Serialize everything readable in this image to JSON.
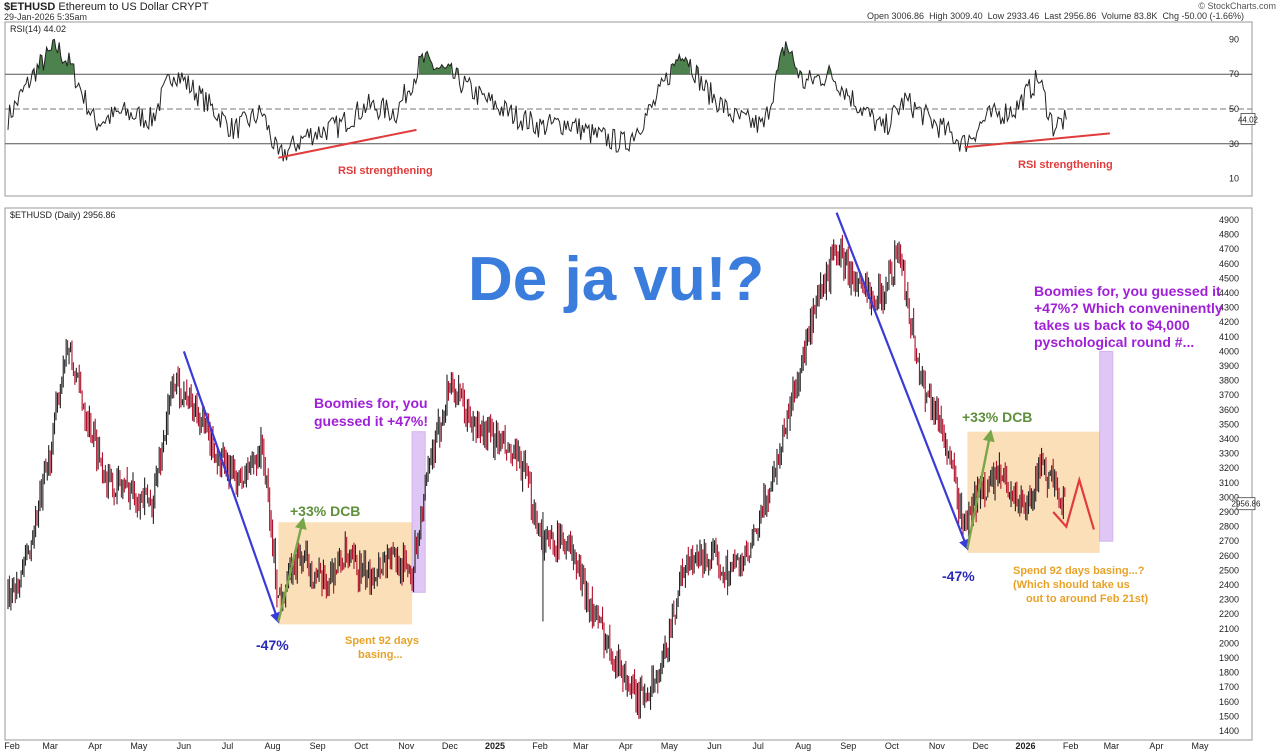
{
  "header": {
    "symbol": "$ETHUSD",
    "name": "Ethereum to US Dollar",
    "exchange": "CRYPT",
    "datetime": "29-Jan-2026 5:35am",
    "brand": "© StockCharts.com",
    "open_label": "Open",
    "open": "3006.86",
    "high_label": "High",
    "high": "3009.40",
    "low_label": "Low",
    "low": "2933.46",
    "last_label": "Last",
    "last": "2956.86",
    "volume_label": "Volume",
    "volume": "83.8K",
    "chg_label": "Chg",
    "chg": "-50.00 (-1.66%)"
  },
  "colors": {
    "price_down": "#b0102a",
    "price_up": "#222222",
    "rsi_line": "#222222",
    "rsi_fill": "#2e6b2e",
    "arrow_blue": "#3a3ad6",
    "arrow_green": "#7aa64a",
    "red_annot": "#e03c3c",
    "purple": "#a020d8",
    "orange_box": "#f6c98a",
    "lavender_bar": "#cfa8f0",
    "deja_vu": "#3b7ddd"
  },
  "chart_data": [
    {
      "type": "line",
      "title": "RSI(14) 44.02",
      "ylim": [
        0,
        100
      ],
      "y_ticks": [
        "90",
        "70",
        "50",
        "30",
        "10"
      ],
      "reference_lines": [
        70,
        50,
        30
      ],
      "last_value": "44.02",
      "x": [
        "2024-02-01",
        "2024-02-20",
        "2024-03-05",
        "2024-03-15",
        "2024-04-01",
        "2024-04-20",
        "2024-05-10",
        "2024-05-25",
        "2024-06-15",
        "2024-07-05",
        "2024-07-25",
        "2024-08-05",
        "2024-08-25",
        "2024-09-15",
        "2024-10-05",
        "2024-10-25",
        "2024-11-12",
        "2024-12-01",
        "2024-12-20",
        "2025-01-10",
        "2025-02-01",
        "2025-02-20",
        "2025-03-10",
        "2025-04-01",
        "2025-04-20",
        "2025-05-10",
        "2025-05-25",
        "2025-06-15",
        "2025-07-05",
        "2025-07-20",
        "2025-08-01",
        "2025-08-20",
        "2025-09-05",
        "2025-09-25",
        "2025-10-10",
        "2025-10-30",
        "2025-11-20",
        "2025-12-05",
        "2025-12-25",
        "2026-01-10",
        "2026-01-20",
        "2026-01-29"
      ],
      "values": [
        45,
        72,
        86,
        75,
        42,
        48,
        44,
        72,
        55,
        38,
        48,
        22,
        35,
        40,
        52,
        48,
        78,
        70,
        58,
        48,
        40,
        42,
        35,
        30,
        52,
        85,
        62,
        45,
        40,
        88,
        65,
        70,
        55,
        38,
        55,
        42,
        30,
        45,
        50,
        68,
        40,
        44
      ],
      "annotations": [
        {
          "text": "RSI strengthening",
          "from": {
            "x": "2024-08-05",
            "y": 22
          },
          "to": {
            "x": "2024-11-08",
            "y": 38
          }
        },
        {
          "text": "RSI strengthening",
          "from": {
            "x": "2025-11-20",
            "y": 28
          },
          "to": {
            "x": "2026-02-28",
            "y": 36
          }
        }
      ]
    },
    {
      "type": "line",
      "title": "$ETHUSD (Daily) 2956.86",
      "ylim": [
        1350,
        4950
      ],
      "y_ticks": [
        "4900",
        "4800",
        "4700",
        "4600",
        "4500",
        "4400",
        "4300",
        "4200",
        "4100",
        "4000",
        "3900",
        "3800",
        "3700",
        "3600",
        "3500",
        "3400",
        "3300",
        "3200",
        "3100",
        "3000",
        "2900",
        "2800",
        "2700",
        "2600",
        "2500",
        "2400",
        "2300",
        "2200",
        "2100",
        "2000",
        "1900",
        "1800",
        "1700",
        "1600",
        "1500",
        "1400"
      ],
      "last_value": "2956.86",
      "x_ticks": [
        "Feb",
        "Mar",
        "Apr",
        "May",
        "Jun",
        "Jul",
        "Aug",
        "Sep",
        "Oct",
        "Nov",
        "Dec",
        "2025",
        "Feb",
        "Mar",
        "Apr",
        "May",
        "Jun",
        "Jul",
        "Aug",
        "Sep",
        "Oct",
        "Nov",
        "Dec",
        "2026",
        "Feb",
        "Mar",
        "Apr",
        "May"
      ],
      "x": [
        "2024-02-01",
        "2024-02-15",
        "2024-03-01",
        "2024-03-12",
        "2024-03-25",
        "2024-04-10",
        "2024-04-25",
        "2024-05-10",
        "2024-05-25",
        "2024-06-10",
        "2024-06-25",
        "2024-07-10",
        "2024-07-25",
        "2024-08-05",
        "2024-08-20",
        "2024-09-05",
        "2024-09-20",
        "2024-10-05",
        "2024-10-20",
        "2024-11-05",
        "2024-11-15",
        "2024-12-01",
        "2024-12-16",
        "2025-01-01",
        "2025-01-20",
        "2025-02-03",
        "2025-02-20",
        "2025-03-10",
        "2025-03-25",
        "2025-04-09",
        "2025-04-25",
        "2025-05-10",
        "2025-05-25",
        "2025-06-10",
        "2025-06-25",
        "2025-07-10",
        "2025-07-25",
        "2025-08-10",
        "2025-08-24",
        "2025-09-10",
        "2025-09-25",
        "2025-10-06",
        "2025-10-20",
        "2025-11-04",
        "2025-11-20",
        "2025-12-01",
        "2025-12-15",
        "2026-01-01",
        "2026-01-10",
        "2026-01-20",
        "2026-01-29"
      ],
      "values": [
        2300,
        2600,
        3300,
        4050,
        3600,
        3100,
        3050,
        2950,
        3800,
        3600,
        3250,
        3100,
        3350,
        2300,
        2600,
        2400,
        2600,
        2450,
        2600,
        2500,
        3100,
        3800,
        3500,
        3400,
        3200,
        2700,
        2700,
        2200,
        1900,
        1600,
        1800,
        2500,
        2600,
        2500,
        2600,
        3100,
        3700,
        4300,
        4700,
        4400,
        4400,
        4700,
        3850,
        3500,
        2800,
        3050,
        3150,
        2900,
        3200,
        3100,
        2956.86
      ],
      "annotations": [
        {
          "text": "-47%",
          "type": "arrow",
          "color": "arrow_blue",
          "from": {
            "x": "2024-06-01",
            "y": 4000
          },
          "to": {
            "x": "2024-08-05",
            "y": 2150
          }
        },
        {
          "text": "+33% DCB",
          "type": "arrow",
          "color": "arrow_green",
          "from": {
            "x": "2024-08-05",
            "y": 2150
          },
          "to": {
            "x": "2024-08-22",
            "y": 2850
          }
        },
        {
          "text": "Spent 92 days basing...",
          "type": "box",
          "color": "orange_box",
          "from": {
            "x": "2024-08-05",
            "y": 2130
          },
          "to": {
            "x": "2024-11-05",
            "y": 2830
          }
        },
        {
          "text": "Boomies for, you guessed it +47%!",
          "type": "box",
          "color": "lavender_bar",
          "from": {
            "x": "2024-11-05",
            "y": 2350
          },
          "to": {
            "x": "2024-11-14",
            "y": 3450
          }
        },
        {
          "text": "-47%",
          "type": "arrow",
          "color": "arrow_blue",
          "from": {
            "x": "2025-08-24",
            "y": 4950
          },
          "to": {
            "x": "2025-11-22",
            "y": 2650
          }
        },
        {
          "text": "+33% DCB",
          "type": "arrow",
          "color": "arrow_green",
          "from": {
            "x": "2025-11-22",
            "y": 2650
          },
          "to": {
            "x": "2025-12-08",
            "y": 3450
          }
        },
        {
          "text": "Spend 92 days basing...? (Which should take us out to around Feb 21st)",
          "type": "box",
          "color": "orange_box",
          "from": {
            "x": "2025-11-22",
            "y": 2620
          },
          "to": {
            "x": "2026-02-21",
            "y": 3450
          }
        },
        {
          "text": "Boomies for, you guessed it +47%? Which conveninently takes us back to $4,000 pyschological round #...",
          "type": "box",
          "color": "lavender_bar",
          "from": {
            "x": "2026-02-21",
            "y": 2700
          },
          "to": {
            "x": "2026-03-02",
            "y": 4000
          }
        }
      ],
      "projection": {
        "color": "red_annot",
        "x": [
          "2026-01-20",
          "2026-01-29",
          "2026-02-07",
          "2026-02-17"
        ],
        "values": [
          2900,
          2800,
          3120,
          2780
        ]
      }
    }
  ],
  "headline": "De ja vu!?",
  "labels": {
    "rsi_strength_1": "RSI strengthening",
    "rsi_strength_2": "RSI strengthening",
    "drop_1": "-47%",
    "dcb_1": "+33% DCB",
    "basing_1_line1": "Spent 92 days",
    "basing_1_line2": "basing...",
    "boom_1_line1": "Boomies for, you",
    "boom_1_line2": "guessed it +47%!",
    "drop_2": "-47%",
    "dcb_2": "+33% DCB",
    "basing_2_line1": "Spend 92 days basing...?",
    "basing_2_line2": "(Which should take us",
    "basing_2_line3": "out to around Feb 21st)",
    "boom_2_line1": "Boomies for, you guessed it",
    "boom_2_line2": "+47%? Which conveninently",
    "boom_2_line3": "takes us back to $4,000",
    "boom_2_line4": "pyschological round #..."
  }
}
